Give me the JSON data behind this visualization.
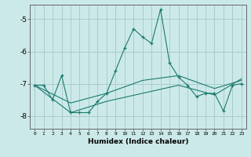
{
  "xlabel": "Humidex (Indice chaleur)",
  "background_color": "#cce9e9",
  "grid_color": "#aacccc",
  "line_color": "#1a7a6e",
  "xlim": [
    -0.5,
    23.5
  ],
  "ylim": [
    -8.4,
    -4.55
  ],
  "yticks": [
    -8,
    -7,
    -6,
    -5
  ],
  "xticks": [
    0,
    1,
    2,
    3,
    4,
    5,
    6,
    7,
    8,
    9,
    10,
    11,
    12,
    13,
    14,
    15,
    16,
    17,
    18,
    19,
    20,
    21,
    22,
    23
  ],
  "series": [
    {
      "x": [
        0,
        1,
        2,
        3,
        4,
        5,
        6,
        7,
        8,
        9,
        10,
        11,
        12,
        13,
        14,
        15,
        16,
        17,
        18,
        19,
        20,
        21,
        22,
        23
      ],
      "y": [
        -7.05,
        -7.05,
        -7.5,
        -6.75,
        -7.9,
        -7.9,
        -7.9,
        -7.55,
        -7.3,
        -6.6,
        -5.9,
        -5.3,
        -5.55,
        -5.75,
        -4.7,
        -6.35,
        -6.8,
        -7.05,
        -7.4,
        -7.3,
        -7.3,
        -7.85,
        -7.05,
        -7.0
      ],
      "marker": true
    },
    {
      "x": [
        0,
        4,
        8,
        12,
        16,
        20,
        23
      ],
      "y": [
        -7.05,
        -7.6,
        -7.3,
        -6.9,
        -6.75,
        -7.15,
        -6.9
      ],
      "marker": false
    },
    {
      "x": [
        0,
        4,
        8,
        12,
        16,
        20,
        23
      ],
      "y": [
        -7.05,
        -7.9,
        -7.55,
        -7.3,
        -7.05,
        -7.35,
        -6.85
      ],
      "marker": false
    }
  ]
}
